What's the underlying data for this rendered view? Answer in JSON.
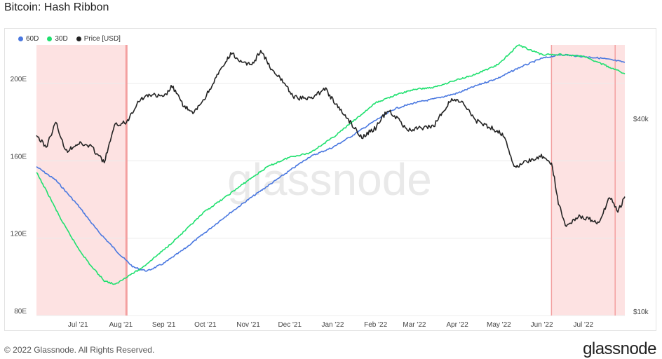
{
  "page": {
    "title": "Bitcoin: Hash Ribbon",
    "copyright": "© 2022 Glassnode. All Rights Reserved.",
    "brand": "glassnode",
    "watermark": "glassnode"
  },
  "colors": {
    "d60": "#4a78e0",
    "d30": "#1ee06e",
    "price": "#222222",
    "band": "#fde2e2",
    "band_edge": "#f3a0a0",
    "grid": "#ececec",
    "axis_text": "#444444"
  },
  "chart_data": {
    "type": "line",
    "title": "Bitcoin: Hash Ribbon",
    "legend": [
      "60D",
      "30D",
      "Price [USD]"
    ],
    "legend_position": "top-left",
    "x_range": [
      "2021-06-01",
      "2022-07-31"
    ],
    "x_ticks": [
      {
        "date": "2021-07-01",
        "label": "Jul '21"
      },
      {
        "date": "2021-08-01",
        "label": "Aug '21"
      },
      {
        "date": "2021-09-01",
        "label": "Sep '21"
      },
      {
        "date": "2021-10-01",
        "label": "Oct '21"
      },
      {
        "date": "2021-11-01",
        "label": "Nov '21"
      },
      {
        "date": "2021-12-01",
        "label": "Dec '21"
      },
      {
        "date": "2022-01-01",
        "label": "Jan '22"
      },
      {
        "date": "2022-02-01",
        "label": "Feb '22"
      },
      {
        "date": "2022-03-01",
        "label": "Mar '22"
      },
      {
        "date": "2022-04-01",
        "label": "Apr '22"
      },
      {
        "date": "2022-05-01",
        "label": "May '22"
      },
      {
        "date": "2022-06-01",
        "label": "Jun '22"
      },
      {
        "date": "2022-07-01",
        "label": "Jul '22"
      }
    ],
    "y_left": {
      "range": [
        80,
        220
      ],
      "ticks": [
        80,
        120,
        160,
        200
      ],
      "tick_labels": [
        "80E",
        "120E",
        "160E",
        "200E"
      ],
      "unit": "EH/s"
    },
    "y_right": {
      "scale": "log",
      "range": [
        10000,
        70000
      ],
      "ticks": [
        10000,
        40000
      ],
      "tick_labels": [
        "$10k",
        "$40k"
      ]
    },
    "grid": true,
    "capitulation_bands": [
      {
        "start": "2021-06-01",
        "end": "2021-08-05"
      },
      {
        "start": "2022-06-08",
        "end": "2022-07-31"
      }
    ],
    "band_markers": [
      "2021-08-05",
      "2022-06-08",
      "2022-07-24"
    ],
    "series": [
      {
        "name": "60D",
        "axis": "left",
        "points": [
          [
            "2021-06-01",
            157
          ],
          [
            "2021-06-15",
            150
          ],
          [
            "2021-07-01",
            137
          ],
          [
            "2021-07-15",
            124
          ],
          [
            "2021-08-01",
            111
          ],
          [
            "2021-08-10",
            105
          ],
          [
            "2021-08-20",
            103
          ],
          [
            "2021-09-01",
            107
          ],
          [
            "2021-09-15",
            114
          ],
          [
            "2021-10-01",
            123
          ],
          [
            "2021-10-15",
            131
          ],
          [
            "2021-11-01",
            140
          ],
          [
            "2021-11-15",
            147
          ],
          [
            "2021-12-01",
            155
          ],
          [
            "2021-12-15",
            162
          ],
          [
            "2022-01-01",
            167
          ],
          [
            "2022-01-15",
            173
          ],
          [
            "2022-02-01",
            181
          ],
          [
            "2022-02-15",
            187
          ],
          [
            "2022-03-01",
            190
          ],
          [
            "2022-03-15",
            192
          ],
          [
            "2022-04-01",
            195
          ],
          [
            "2022-04-15",
            199
          ],
          [
            "2022-05-01",
            203
          ],
          [
            "2022-05-15",
            208
          ],
          [
            "2022-06-01",
            213
          ],
          [
            "2022-06-15",
            215
          ],
          [
            "2022-07-01",
            214
          ],
          [
            "2022-07-15",
            213
          ],
          [
            "2022-07-31",
            211
          ]
        ]
      },
      {
        "name": "30D",
        "axis": "left",
        "points": [
          [
            "2021-06-01",
            154
          ],
          [
            "2021-06-10",
            142
          ],
          [
            "2021-06-20",
            128
          ],
          [
            "2021-07-01",
            115
          ],
          [
            "2021-07-10",
            106
          ],
          [
            "2021-07-20",
            98
          ],
          [
            "2021-07-28",
            96
          ],
          [
            "2021-08-05",
            100
          ],
          [
            "2021-08-15",
            104
          ],
          [
            "2021-09-01",
            114
          ],
          [
            "2021-09-15",
            123
          ],
          [
            "2021-10-01",
            134
          ],
          [
            "2021-10-15",
            141
          ],
          [
            "2021-11-01",
            150
          ],
          [
            "2021-11-15",
            157
          ],
          [
            "2021-12-01",
            162
          ],
          [
            "2021-12-15",
            164
          ],
          [
            "2022-01-01",
            172
          ],
          [
            "2022-01-15",
            180
          ],
          [
            "2022-02-01",
            190
          ],
          [
            "2022-02-15",
            194
          ],
          [
            "2022-03-01",
            197
          ],
          [
            "2022-03-15",
            198
          ],
          [
            "2022-04-01",
            202
          ],
          [
            "2022-04-15",
            205
          ],
          [
            "2022-05-01",
            210
          ],
          [
            "2022-05-15",
            220
          ],
          [
            "2022-06-01",
            215
          ],
          [
            "2022-06-15",
            215
          ],
          [
            "2022-07-01",
            214
          ],
          [
            "2022-07-15",
            210
          ],
          [
            "2022-07-31",
            205
          ]
        ]
      },
      {
        "name": "Price [USD]",
        "axis": "right",
        "points": [
          [
            "2021-06-01",
            36500
          ],
          [
            "2021-06-08",
            33500
          ],
          [
            "2021-06-15",
            40000
          ],
          [
            "2021-06-22",
            32500
          ],
          [
            "2021-07-01",
            34500
          ],
          [
            "2021-07-10",
            33800
          ],
          [
            "2021-07-20",
            30000
          ],
          [
            "2021-07-28",
            39500
          ],
          [
            "2021-08-05",
            40000
          ],
          [
            "2021-08-14",
            47000
          ],
          [
            "2021-08-22",
            49000
          ],
          [
            "2021-09-01",
            48000
          ],
          [
            "2021-09-07",
            52000
          ],
          [
            "2021-09-14",
            46000
          ],
          [
            "2021-09-22",
            42500
          ],
          [
            "2021-10-01",
            48000
          ],
          [
            "2021-10-08",
            54500
          ],
          [
            "2021-10-15",
            61000
          ],
          [
            "2021-10-20",
            66000
          ],
          [
            "2021-10-28",
            61000
          ],
          [
            "2021-11-05",
            61500
          ],
          [
            "2021-11-10",
            67500
          ],
          [
            "2021-11-18",
            58000
          ],
          [
            "2021-11-26",
            54000
          ],
          [
            "2021-12-04",
            48000
          ],
          [
            "2021-12-15",
            47500
          ],
          [
            "2021-12-27",
            51000
          ],
          [
            "2022-01-01",
            47000
          ],
          [
            "2022-01-10",
            42000
          ],
          [
            "2022-01-22",
            36000
          ],
          [
            "2022-02-01",
            38500
          ],
          [
            "2022-02-10",
            44000
          ],
          [
            "2022-02-24",
            38000
          ],
          [
            "2022-03-07",
            38500
          ],
          [
            "2022-03-15",
            39000
          ],
          [
            "2022-03-28",
            47500
          ],
          [
            "2022-04-05",
            46000
          ],
          [
            "2022-04-15",
            40500
          ],
          [
            "2022-04-26",
            38500
          ],
          [
            "2022-05-05",
            36500
          ],
          [
            "2022-05-12",
            29000
          ],
          [
            "2022-05-20",
            30000
          ],
          [
            "2022-05-31",
            31500
          ],
          [
            "2022-06-08",
            30000
          ],
          [
            "2022-06-13",
            22500
          ],
          [
            "2022-06-18",
            19000
          ],
          [
            "2022-06-28",
            20500
          ],
          [
            "2022-07-05",
            20000
          ],
          [
            "2022-07-13",
            19500
          ],
          [
            "2022-07-20",
            23500
          ],
          [
            "2022-07-26",
            21000
          ],
          [
            "2022-07-31",
            23500
          ]
        ]
      }
    ]
  }
}
